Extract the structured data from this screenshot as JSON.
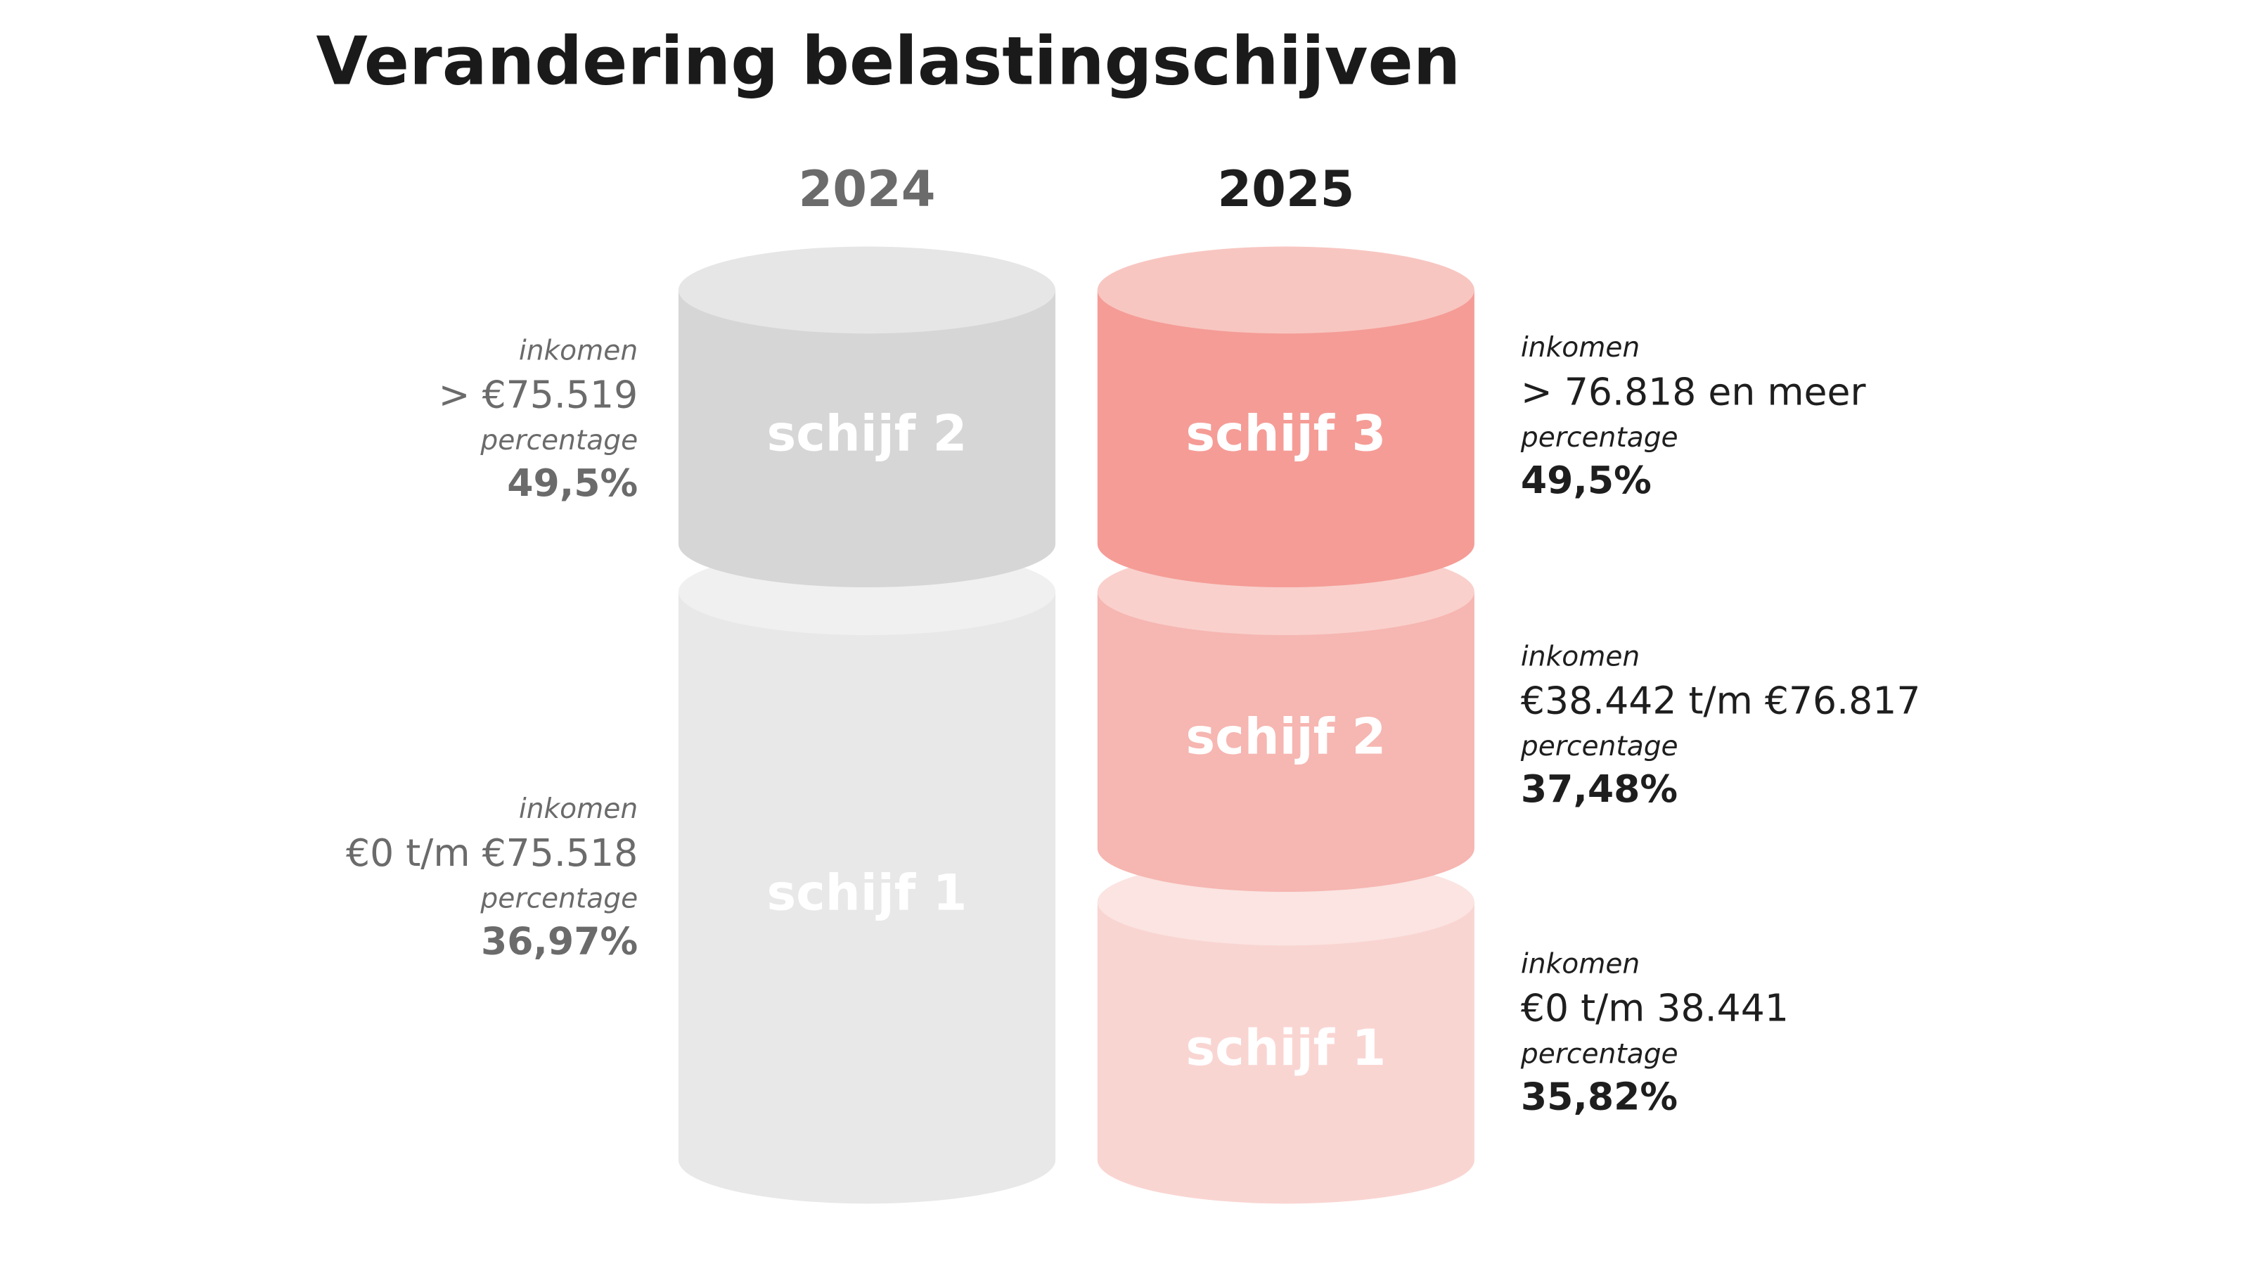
{
  "title": "Verandering belastingschijven",
  "columns": [
    {
      "year": "2024",
      "brackets": [
        {
          "name": "schijf 2",
          "income_label": "inkomen",
          "income": "> €75.519",
          "percentage_label": "percentage",
          "percentage": "49,5%"
        },
        {
          "name": "schijf 1",
          "income_label": "inkomen",
          "income": "€0 t/m €75.518",
          "percentage_label": "percentage",
          "percentage": "36,97%"
        }
      ]
    },
    {
      "year": "2025",
      "brackets": [
        {
          "name": "schijf 3",
          "income_label": "inkomen",
          "income": "> 76.818 en meer",
          "percentage_label": "percentage",
          "percentage": "49,5%"
        },
        {
          "name": "schijf 2",
          "income_label": "inkomen",
          "income": "€38.442 t/m €76.817",
          "percentage_label": "percentage",
          "percentage": "37,48%"
        },
        {
          "name": "schijf 1",
          "income_label": "inkomen",
          "income": "€0 t/m 38.441",
          "percentage_label": "percentage",
          "percentage": "35,82%"
        }
      ]
    }
  ]
}
